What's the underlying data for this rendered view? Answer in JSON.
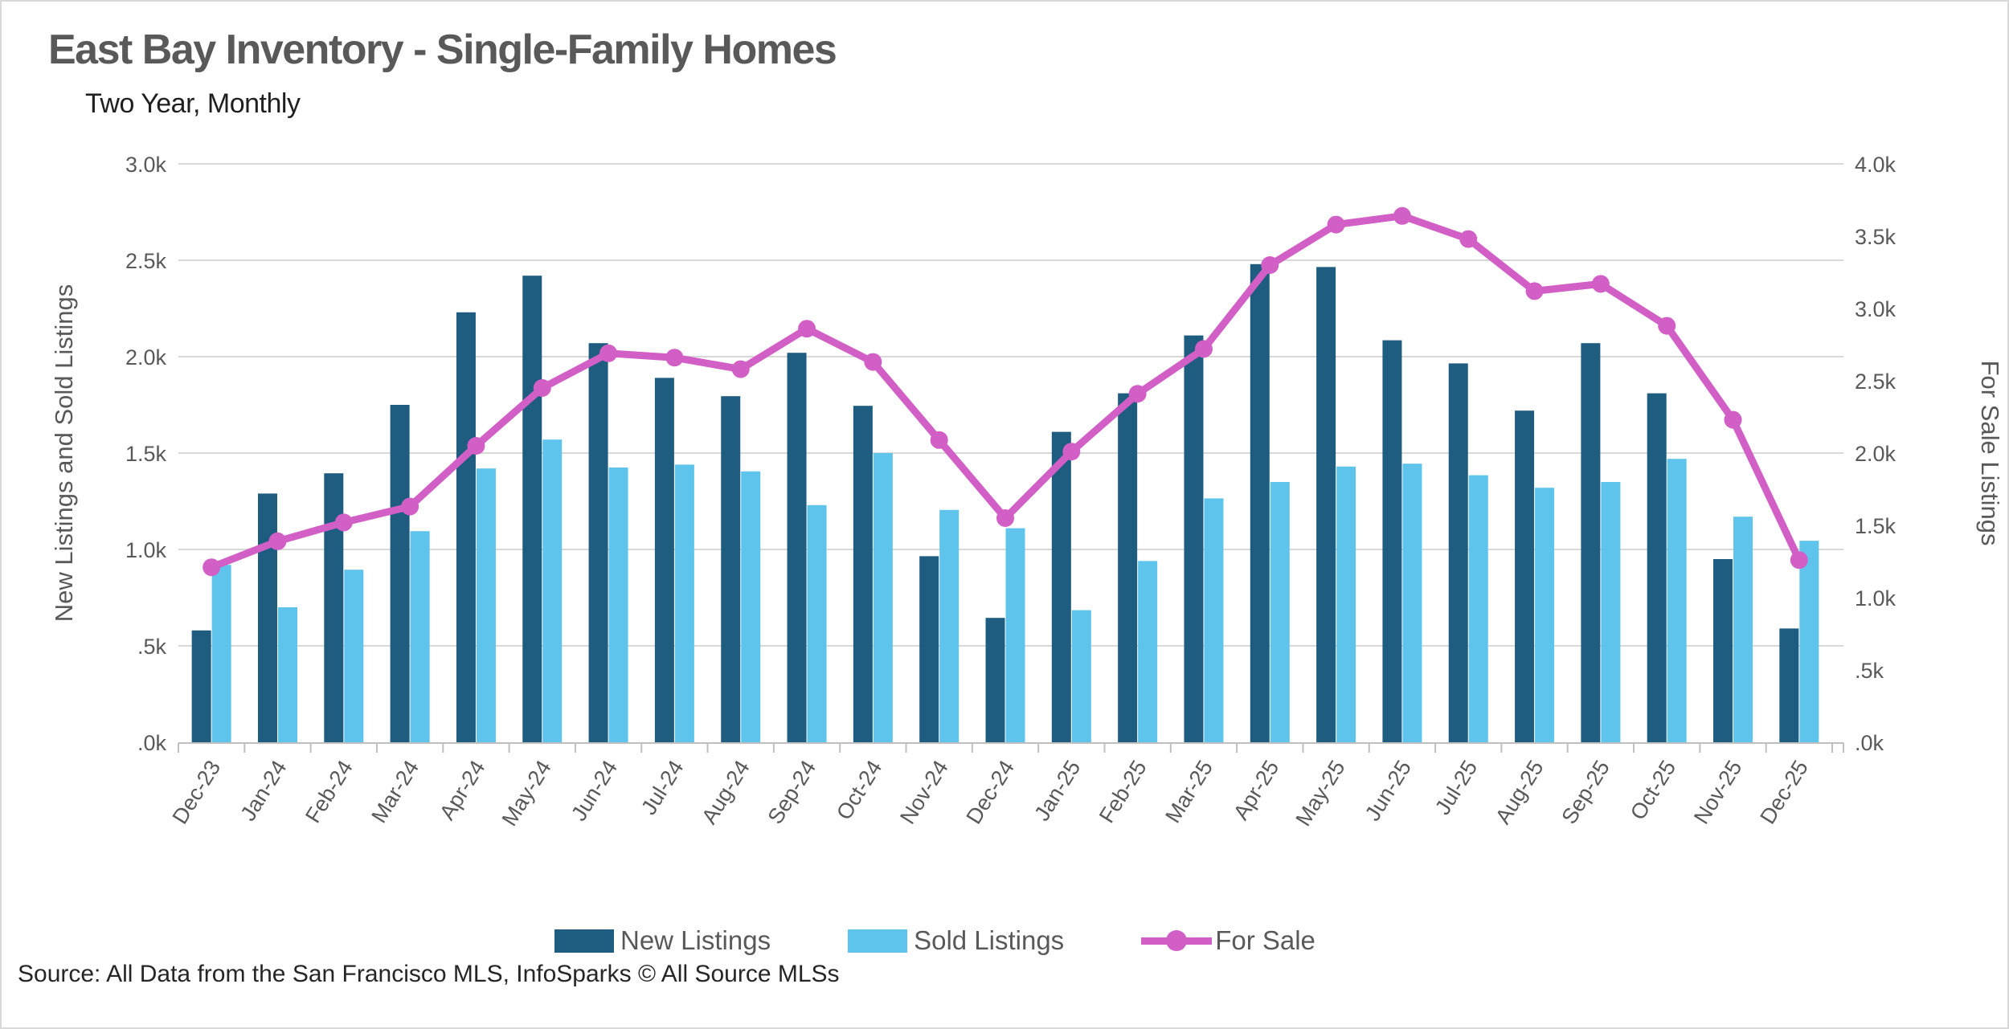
{
  "header": {
    "title": "East Bay Inventory - Single-Family Homes",
    "subtitle": "Two Year, Monthly"
  },
  "footer": {
    "source": "Source: All Data from the San Francisco MLS, InfoSparks © All Source MLSs"
  },
  "legend": [
    {
      "label": "New Listings",
      "type": "bar",
      "color": "#1e5c80"
    },
    {
      "label": "Sold Listings",
      "type": "bar",
      "color": "#5ec4ec"
    },
    {
      "label": "For Sale",
      "type": "line",
      "color": "#d15fc6"
    }
  ],
  "colors": {
    "grid": "#d9d9d9",
    "axis_line": "#bfbfbf",
    "tick_text": "#595959",
    "title_text": "#595959",
    "background": "#ffffff"
  },
  "chart_data": {
    "type": "bar",
    "subtype": "grouped bars with overlaid line on secondary axis",
    "title": "East Bay Inventory - Single-Family Homes",
    "subtitle": "Two Year, Monthly",
    "grid": true,
    "legend_position": "bottom",
    "categories": [
      "Dec-23",
      "Jan-24",
      "Feb-24",
      "Mar-24",
      "Apr-24",
      "May-24",
      "Jun-24",
      "Jul-24",
      "Aug-24",
      "Sep-24",
      "Oct-24",
      "Nov-24",
      "Dec-24",
      "Jan-25",
      "Feb-25",
      "Mar-25",
      "Apr-25",
      "May-25",
      "Jun-25",
      "Jul-25",
      "Aug-25",
      "Sep-25",
      "Oct-25",
      "Nov-25",
      "Dec-25"
    ],
    "series": [
      {
        "name": "New Listings",
        "type": "bar",
        "axis": "left",
        "color": "#1e5c80",
        "values": [
          580,
          1290,
          1395,
          1750,
          2230,
          2420,
          2070,
          1890,
          1795,
          2020,
          1745,
          965,
          645,
          1610,
          1810,
          2110,
          2480,
          2465,
          2085,
          1965,
          1720,
          2070,
          1810,
          950,
          590
        ]
      },
      {
        "name": "Sold Listings",
        "type": "bar",
        "axis": "left",
        "color": "#5ec4ec",
        "values": [
          920,
          700,
          895,
          1095,
          1420,
          1570,
          1425,
          1440,
          1405,
          1230,
          1500,
          1205,
          1110,
          685,
          940,
          1265,
          1350,
          1430,
          1445,
          1385,
          1320,
          1350,
          1470,
          1170,
          1045
        ]
      },
      {
        "name": "For Sale",
        "type": "line",
        "axis": "right",
        "color": "#d15fc6",
        "values": [
          1210,
          1390,
          1520,
          1630,
          2050,
          2450,
          2690,
          2660,
          2580,
          2860,
          2630,
          2090,
          1550,
          2010,
          2410,
          2720,
          3300,
          3580,
          3640,
          3480,
          3120,
          3170,
          2880,
          2230,
          1260
        ]
      }
    ],
    "left_axis": {
      "title": "New Listings and Sold Listings",
      "min": 0,
      "max": 3000,
      "tick_step": 500,
      "tick_labels_top_to_bottom": [
        "3.0k",
        "2.5k",
        "2.0k",
        "1.5k",
        "1.0k",
        ".5k",
        ".0k"
      ]
    },
    "right_axis": {
      "title": "For Sale Listings",
      "min": 0,
      "max": 4000,
      "tick_step": 500,
      "tick_labels_top_to_bottom": [
        "4.0k",
        "3.5k",
        "3.0k",
        "2.5k",
        "2.0k",
        "1.5k",
        "1.0k",
        ".5k",
        ".0k"
      ]
    }
  }
}
